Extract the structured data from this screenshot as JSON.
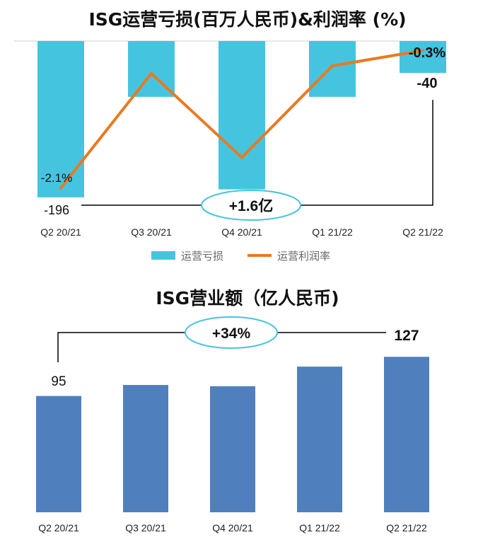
{
  "chart_data": [
    {
      "type": "bar+line",
      "title": "ISG运营亏损(百万人民币)&利润率 (%)",
      "categories": [
        "Q2 20/21",
        "Q3 20/21",
        "Q4 20/21",
        "Q1 21/22",
        "Q2 21/22"
      ],
      "series": [
        {
          "name": "运营亏损",
          "type": "bar",
          "values": [
            -196,
            -70,
            -186,
            -70,
            -40
          ],
          "data_labels": [
            "-196",
            "",
            "",
            "",
            "-40"
          ],
          "color": "#45c4e0"
        },
        {
          "name": "运营利润率",
          "type": "line",
          "values": [
            -2.1,
            -0.6,
            -1.7,
            -0.5,
            -0.3
          ],
          "data_labels": [
            "-2.1%",
            "",
            "",
            "",
            "-0.3%"
          ],
          "color": "#e87a22"
        }
      ],
      "annotation": "+1.6亿",
      "legend_position": "bottom"
    },
    {
      "type": "bar",
      "title": "ISG营业额（亿人民币)",
      "categories": [
        "Q2 20/21",
        "Q3 20/21",
        "Q4 20/21",
        "Q1 21/22",
        "Q2 21/22"
      ],
      "values": [
        95,
        104,
        103,
        119,
        127
      ],
      "data_labels": [
        "95",
        "",
        "",
        "",
        "127"
      ],
      "color": "#4f80bd",
      "annotation": "+34%"
    }
  ]
}
